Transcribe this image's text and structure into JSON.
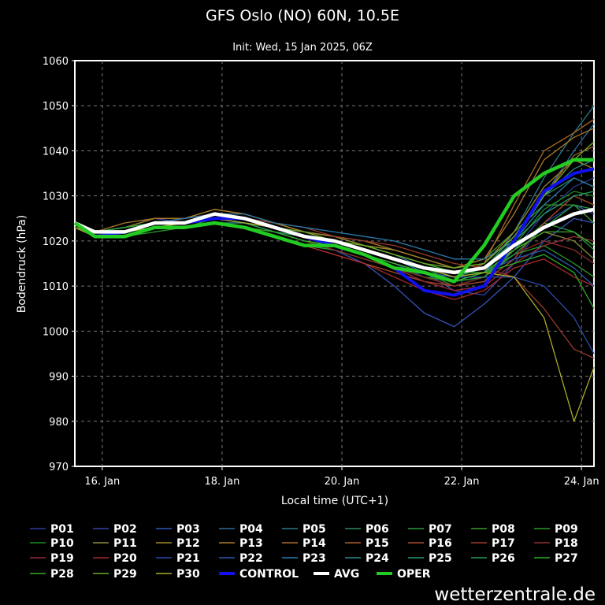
{
  "chart_data": {
    "type": "line",
    "title": "GFS Oslo (NO) 60N, 10.5E",
    "subtitle": "Init: Wed, 15 Jan 2025, 06Z",
    "xlabel": "Local time (UTC+1)",
    "ylabel": "Bodendruck (hPa)",
    "x_unit": "hours since 15 Jan 2025 00:00 local",
    "xlim": [
      13,
      221
    ],
    "ylim": [
      970,
      1060
    ],
    "yticks": [
      970,
      980,
      990,
      1000,
      1010,
      1020,
      1030,
      1040,
      1050,
      1060
    ],
    "xticks": [
      {
        "x": 24,
        "label": "16. Jan"
      },
      {
        "x": 72,
        "label": "18. Jan"
      },
      {
        "x": 120,
        "label": "20. Jan"
      },
      {
        "x": 168,
        "label": "22. Jan"
      },
      {
        "x": 216,
        "label": "24. Jan"
      }
    ],
    "grid": true,
    "credit": "wetterzentrale.de",
    "x": [
      13,
      21,
      33,
      45,
      57,
      69,
      81,
      93,
      105,
      117,
      129,
      141,
      153,
      165,
      177,
      189,
      201,
      213,
      221
    ],
    "series": [
      {
        "name": "P01",
        "color": "#2a3a9a",
        "values": [
          1023,
          1021,
          1022,
          1024,
          1024,
          1025,
          1024,
          1022,
          1020,
          1019,
          1017,
          1015,
          1012,
          1010,
          1011,
          1018,
          1026,
          1032,
          1034
        ]
      },
      {
        "name": "P02",
        "color": "#3344aa",
        "values": [
          1024,
          1022,
          1023,
          1025,
          1024,
          1026,
          1025,
          1023,
          1021,
          1020,
          1018,
          1016,
          1013,
          1009,
          1008,
          1015,
          1024,
          1028,
          1026
        ]
      },
      {
        "name": "P03",
        "color": "#3355bb",
        "values": [
          1023,
          1021,
          1022,
          1023,
          1023,
          1024,
          1023,
          1021,
          1019,
          1018,
          1015,
          1010,
          1004,
          1001,
          1006,
          1012,
          1020,
          1025,
          1024
        ]
      },
      {
        "name": "P04",
        "color": "#2a6a9a",
        "values": [
          1024,
          1022,
          1023,
          1024,
          1025,
          1026,
          1025,
          1024,
          1022,
          1021,
          1019,
          1017,
          1014,
          1012,
          1014,
          1020,
          1030,
          1040,
          1046
        ]
      },
      {
        "name": "P05",
        "color": "#2a7a8a",
        "values": [
          1023,
          1021,
          1022,
          1024,
          1024,
          1025,
          1024,
          1023,
          1021,
          1020,
          1018,
          1016,
          1013,
          1011,
          1013,
          1022,
          1034,
          1044,
          1050
        ]
      },
      {
        "name": "P06",
        "color": "#2a8a5a",
        "values": [
          1024,
          1022,
          1022,
          1023,
          1023,
          1024,
          1024,
          1022,
          1020,
          1019,
          1017,
          1015,
          1013,
          1012,
          1014,
          1021,
          1030,
          1034,
          1032
        ]
      },
      {
        "name": "P07",
        "color": "#2a9a3a",
        "values": [
          1023,
          1021,
          1022,
          1023,
          1023,
          1025,
          1024,
          1023,
          1021,
          1020,
          1018,
          1016,
          1014,
          1011,
          1012,
          1018,
          1024,
          1022,
          1018
        ]
      },
      {
        "name": "P08",
        "color": "#3a9a2a",
        "values": [
          1024,
          1022,
          1023,
          1024,
          1024,
          1026,
          1025,
          1024,
          1022,
          1021,
          1019,
          1018,
          1016,
          1014,
          1016,
          1022,
          1028,
          1028,
          1024
        ]
      },
      {
        "name": "P09",
        "color": "#2a9a2a",
        "values": [
          1023,
          1021,
          1021,
          1022,
          1023,
          1024,
          1023,
          1021,
          1019,
          1018,
          1016,
          1014,
          1012,
          1011,
          1013,
          1017,
          1019,
          1015,
          1012
        ]
      },
      {
        "name": "P10",
        "color": "#1a8a1a",
        "values": [
          1024,
          1022,
          1022,
          1024,
          1024,
          1025,
          1024,
          1022,
          1021,
          1019,
          1017,
          1015,
          1013,
          1010,
          1012,
          1019,
          1027,
          1031,
          1030
        ]
      },
      {
        "name": "P11",
        "color": "#8a8a3a",
        "values": [
          1023,
          1021,
          1022,
          1023,
          1024,
          1025,
          1025,
          1023,
          1022,
          1020,
          1019,
          1017,
          1015,
          1013,
          1014,
          1018,
          1022,
          1020,
          1016
        ]
      },
      {
        "name": "P12",
        "color": "#9a8a2a",
        "values": [
          1024,
          1022,
          1023,
          1025,
          1025,
          1027,
          1026,
          1024,
          1022,
          1021,
          1019,
          1018,
          1016,
          1014,
          1015,
          1022,
          1032,
          1038,
          1036
        ]
      },
      {
        "name": "P13",
        "color": "#aa7a2a",
        "values": [
          1024,
          1022,
          1024,
          1025,
          1025,
          1027,
          1026,
          1024,
          1022,
          1021,
          1020,
          1018,
          1016,
          1014,
          1016,
          1026,
          1038,
          1043,
          1045
        ]
      },
      {
        "name": "P14",
        "color": "#aa6a2a",
        "values": [
          1023,
          1022,
          1023,
          1024,
          1025,
          1026,
          1025,
          1023,
          1021,
          1019,
          1017,
          1015,
          1013,
          1012,
          1015,
          1028,
          1040,
          1044,
          1047
        ]
      },
      {
        "name": "P15",
        "color": "#aa5a2a",
        "values": [
          1024,
          1022,
          1022,
          1023,
          1024,
          1025,
          1024,
          1023,
          1021,
          1020,
          1018,
          1016,
          1014,
          1013,
          1014,
          1020,
          1030,
          1039,
          1041
        ]
      },
      {
        "name": "P16",
        "color": "#aa4a2a",
        "values": [
          1023,
          1021,
          1022,
          1023,
          1023,
          1024,
          1023,
          1021,
          1019,
          1017,
          1015,
          1013,
          1011,
          1010,
          1011,
          1016,
          1024,
          1030,
          1028
        ]
      },
      {
        "name": "P17",
        "color": "#9a3a2a",
        "values": [
          1024,
          1022,
          1023,
          1024,
          1024,
          1026,
          1025,
          1024,
          1023,
          1021,
          1020,
          1019,
          1017,
          1015,
          1014,
          1012,
          1005,
          996,
          994
        ]
      },
      {
        "name": "P18",
        "color": "#8a2a2a",
        "values": [
          1023,
          1021,
          1022,
          1023,
          1024,
          1025,
          1024,
          1022,
          1020,
          1018,
          1016,
          1014,
          1012,
          1010,
          1012,
          1017,
          1020,
          1018,
          1015
        ]
      },
      {
        "name": "P19",
        "color": "#9a2a3a",
        "values": [
          1024,
          1022,
          1022,
          1024,
          1025,
          1026,
          1025,
          1023,
          1021,
          1019,
          1017,
          1014,
          1011,
          1009,
          1010,
          1015,
          1019,
          1021,
          1020
        ]
      },
      {
        "name": "P20",
        "color": "#aa2a2a",
        "values": [
          1023,
          1021,
          1022,
          1023,
          1023,
          1024,
          1023,
          1021,
          1019,
          1017,
          1015,
          1012,
          1009,
          1007,
          1009,
          1014,
          1016,
          1012,
          1010
        ]
      },
      {
        "name": "P21",
        "color": "#2a4aaa",
        "values": [
          1024,
          1022,
          1023,
          1024,
          1024,
          1025,
          1025,
          1023,
          1021,
          1020,
          1018,
          1016,
          1014,
          1012,
          1012,
          1012,
          1010,
          1003,
          995
        ]
      },
      {
        "name": "P22",
        "color": "#2a5aaa",
        "values": [
          1023,
          1021,
          1022,
          1023,
          1024,
          1025,
          1024,
          1022,
          1021,
          1019,
          1017,
          1015,
          1013,
          1012,
          1013,
          1016,
          1018,
          1014,
          1010
        ]
      },
      {
        "name": "P23",
        "color": "#2a7aaa",
        "values": [
          1024,
          1022,
          1023,
          1024,
          1025,
          1026,
          1026,
          1024,
          1023,
          1022,
          1021,
          1020,
          1018,
          1016,
          1016,
          1020,
          1028,
          1034,
          1032
        ]
      },
      {
        "name": "P24",
        "color": "#2a8a8a",
        "values": [
          1023,
          1021,
          1022,
          1023,
          1023,
          1024,
          1024,
          1022,
          1020,
          1019,
          1017,
          1015,
          1013,
          1011,
          1013,
          1020,
          1030,
          1036,
          1038
        ]
      },
      {
        "name": "P25",
        "color": "#2a9a6a",
        "values": [
          1024,
          1022,
          1022,
          1023,
          1024,
          1025,
          1024,
          1023,
          1021,
          1020,
          1018,
          1016,
          1014,
          1012,
          1014,
          1020,
          1026,
          1030,
          1031
        ]
      },
      {
        "name": "P26",
        "color": "#2a9a4a",
        "values": [
          1023,
          1021,
          1022,
          1024,
          1024,
          1025,
          1024,
          1022,
          1021,
          1019,
          1017,
          1015,
          1013,
          1011,
          1012,
          1017,
          1023,
          1028,
          1027
        ]
      },
      {
        "name": "P27",
        "color": "#2aaa2a",
        "values": [
          1024,
          1022,
          1023,
          1024,
          1024,
          1026,
          1025,
          1023,
          1022,
          1020,
          1019,
          1017,
          1015,
          1013,
          1013,
          1015,
          1017,
          1013,
          1005
        ]
      },
      {
        "name": "P28",
        "color": "#3aaa2a",
        "values": [
          1023,
          1021,
          1022,
          1023,
          1023,
          1024,
          1023,
          1022,
          1020,
          1019,
          1017,
          1015,
          1013,
          1011,
          1013,
          1018,
          1022,
          1022,
          1019
        ]
      },
      {
        "name": "P29",
        "color": "#6aaa2a",
        "values": [
          1024,
          1022,
          1022,
          1024,
          1024,
          1025,
          1025,
          1023,
          1022,
          1020,
          1019,
          1017,
          1015,
          1014,
          1015,
          1021,
          1030,
          1038,
          1042
        ]
      },
      {
        "name": "P30",
        "color": "#aaaa2a",
        "values": [
          1023,
          1021,
          1022,
          1023,
          1024,
          1025,
          1024,
          1023,
          1021,
          1020,
          1018,
          1016,
          1014,
          1012,
          1013,
          1012,
          1003,
          980,
          992
        ]
      },
      {
        "name": "CONTROL",
        "color": "#1111ee",
        "values": [
          1024,
          1021,
          1022,
          1024,
          1024,
          1025,
          1025,
          1023,
          1021,
          1019,
          1017,
          1014,
          1009,
          1008,
          1010,
          1020,
          1031,
          1035,
          1036
        ]
      },
      {
        "name": "AVG",
        "color": "#ffffff",
        "values": [
          1024,
          1022,
          1022,
          1024,
          1024,
          1026,
          1025,
          1023,
          1021,
          1020,
          1018,
          1016,
          1014,
          1013,
          1014,
          1019,
          1023,
          1026,
          1027
        ]
      },
      {
        "name": "OPER",
        "color": "#22cc22",
        "values": [
          1024,
          1021,
          1021,
          1023,
          1023,
          1024,
          1023,
          1021,
          1019,
          1019,
          1017,
          1014,
          1013,
          1011,
          1019,
          1030,
          1035,
          1038,
          1038
        ]
      }
    ]
  }
}
